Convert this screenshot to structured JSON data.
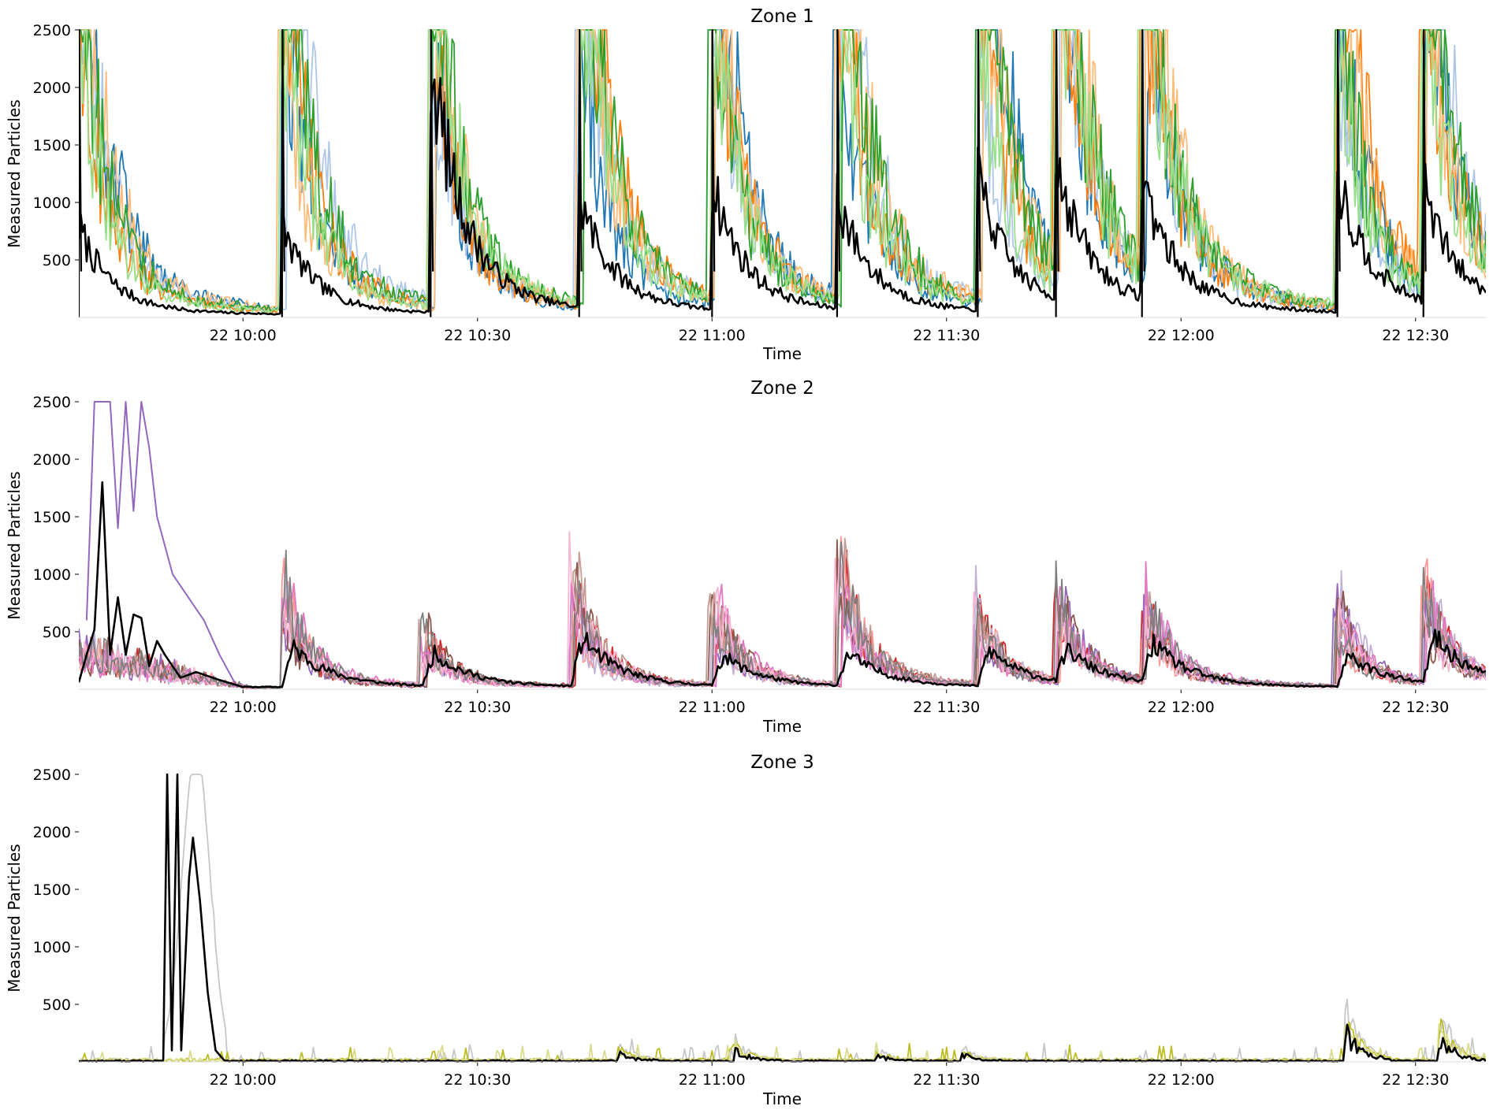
{
  "chart_data": [
    {
      "type": "line",
      "title": "Zone 1",
      "xlabel": "Time",
      "ylabel": "Measured Particles",
      "x_range": [
        "22 09:39",
        "22 12:39"
      ],
      "ylim": [
        0,
        2500
      ],
      "y_ticks": [
        500,
        1000,
        1500,
        2000,
        2500
      ],
      "x_ticks": [
        "22 10:00",
        "22 10:30",
        "22 11:00",
        "22 11:30",
        "22 12:00",
        "22 12:30"
      ],
      "grid": false,
      "legend": "none",
      "mean_series_color": "#000000",
      "series_colors": [
        "#1f77b4",
        "#aec7e8",
        "#ff7f0e",
        "#ffbb78",
        "#2ca02c",
        "#98df8a"
      ],
      "event_times": [
        "22 09:39",
        "22 10:05",
        "22 10:24",
        "22 10:43",
        "22 11:00",
        "22 11:16",
        "22 11:34",
        "22 11:44",
        "22 11:55",
        "22 12:20",
        "22 12:31"
      ],
      "event_peaks": [
        2500,
        2500,
        2100,
        2500,
        2500,
        2500,
        2500,
        2500,
        2500,
        2500,
        2500
      ],
      "mean_peak_values": [
        700,
        700,
        2050,
        880,
        1000,
        900,
        1050,
        1100,
        960,
        1100,
        900
      ],
      "baseline": 30
    },
    {
      "type": "line",
      "title": "Zone 2",
      "xlabel": "Time",
      "ylabel": "Measured Particles",
      "x_range": [
        "22 09:39",
        "22 12:39"
      ],
      "ylim": [
        0,
        2500
      ],
      "y_ticks": [
        500,
        1000,
        1500,
        2000,
        2500
      ],
      "x_ticks": [
        "22 10:00",
        "22 10:30",
        "22 11:00",
        "22 11:30",
        "22 12:00",
        "22 12:30"
      ],
      "grid": false,
      "legend": "none",
      "mean_series_color": "#000000",
      "series_colors": [
        "#d62728",
        "#ff9896",
        "#9467bd",
        "#c5b0d5",
        "#8c564b",
        "#c49c94",
        "#e377c2",
        "#f7b6d2",
        "#7f7f7f"
      ],
      "event_times": [
        "22 10:05",
        "22 10:23",
        "22 10:42",
        "22 11:00",
        "22 11:16",
        "22 11:34",
        "22 11:44",
        "22 11:55",
        "22 12:20",
        "22 12:31"
      ],
      "event_peaks": [
        1500,
        750,
        1500,
        1250,
        1680,
        1010,
        1100,
        1150,
        1180,
        1350
      ],
      "mean_peak_values": [
        460,
        380,
        560,
        350,
        380,
        420,
        380,
        460,
        370,
        540
      ],
      "early_mean_series": [
        [
          0,
          60
        ],
        [
          1,
          300
        ],
        [
          2,
          520
        ],
        [
          3,
          1800
        ],
        [
          4,
          300
        ],
        [
          5,
          800
        ],
        [
          6,
          300
        ],
        [
          7,
          650
        ],
        [
          8,
          620
        ],
        [
          9,
          200
        ],
        [
          10,
          420
        ],
        [
          11,
          300
        ],
        [
          13,
          100
        ],
        [
          15,
          150
        ],
        [
          18,
          80
        ],
        [
          21,
          20
        ]
      ],
      "early_purple_series": [
        [
          1,
          600
        ],
        [
          2,
          2500
        ],
        [
          3,
          2500
        ],
        [
          4,
          2500
        ],
        [
          5,
          1400
        ],
        [
          6,
          2500
        ],
        [
          7,
          1550
        ],
        [
          8,
          2500
        ],
        [
          9,
          2100
        ],
        [
          10,
          1500
        ],
        [
          12,
          1000
        ],
        [
          14,
          800
        ],
        [
          16,
          600
        ],
        [
          18,
          300
        ],
        [
          20,
          50
        ]
      ],
      "baseline": 20
    },
    {
      "type": "line",
      "title": "Zone 3",
      "xlabel": "Time",
      "ylabel": "Measured Particles",
      "x_range": [
        "22 09:39",
        "22 12:39"
      ],
      "ylim": [
        0,
        2500
      ],
      "y_ticks": [
        500,
        1000,
        1500,
        2000,
        2500
      ],
      "x_ticks": [
        "22 10:00",
        "22 10:30",
        "22 11:00",
        "22 11:30",
        "22 12:00",
        "22 12:30"
      ],
      "grid": false,
      "legend": "none",
      "mean_series_color": "#000000",
      "series_colors": [
        "#c7c7c7",
        "#bcbd22",
        "#dbdb8d"
      ],
      "spike_series": [
        [
          10.8,
          20
        ],
        [
          11.3,
          2500
        ],
        [
          11.9,
          100
        ],
        [
          12.6,
          2500
        ],
        [
          13.1,
          100
        ],
        [
          14.1,
          1600
        ],
        [
          14.6,
          1950
        ],
        [
          15.5,
          1400
        ],
        [
          16.5,
          600
        ],
        [
          17.5,
          100
        ],
        [
          18.5,
          20
        ]
      ],
      "small_bumps": [
        [
          "22 10:48",
          80
        ],
        [
          "22 11:03",
          100
        ],
        [
          "22 11:21",
          50
        ],
        [
          "22 11:32",
          60
        ],
        [
          "22 12:21",
          300
        ],
        [
          "22 12:33",
          250
        ]
      ],
      "baseline": 15
    }
  ]
}
